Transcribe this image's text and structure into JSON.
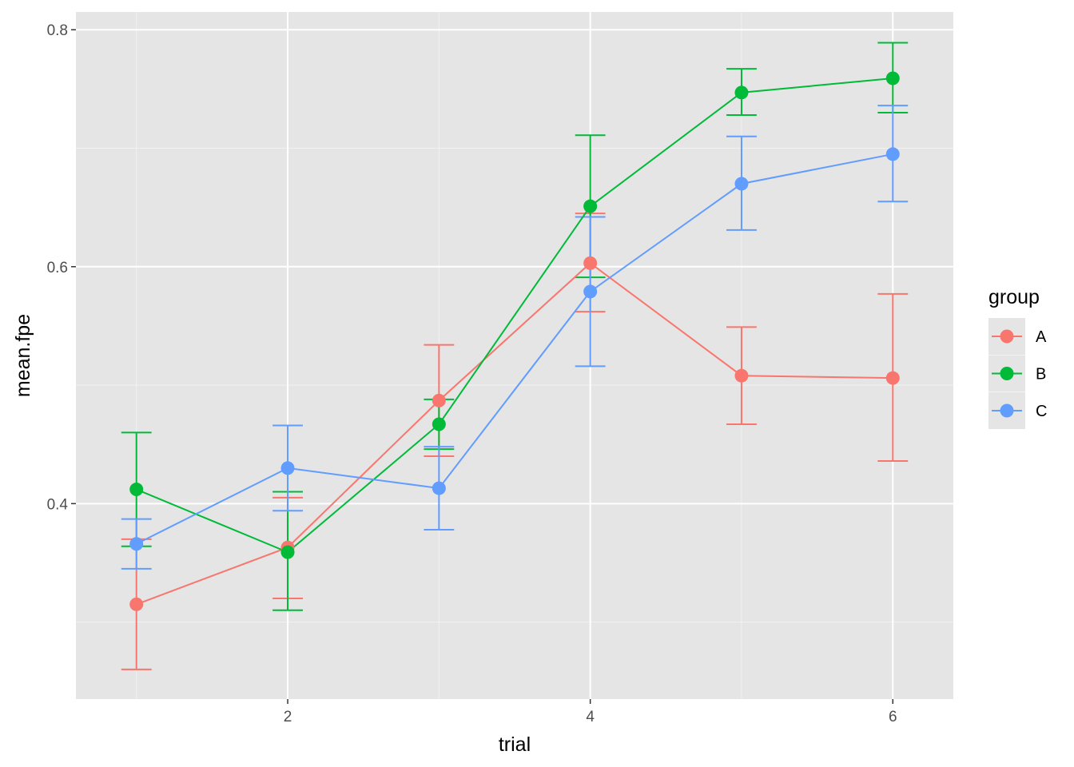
{
  "chart_data": {
    "type": "line",
    "xlabel": "trial",
    "ylabel": "mean.fpe",
    "xlim": [
      0.6,
      6.4
    ],
    "ylim": [
      0.235,
      0.815
    ],
    "x_ticks": [
      2,
      4,
      6
    ],
    "x_tick_labels": [
      "2",
      "4",
      "6"
    ],
    "x_minor": [
      1,
      3,
      5
    ],
    "y_ticks": [
      0.4,
      0.6,
      0.8
    ],
    "y_tick_labels": [
      "0.4",
      "0.6",
      "0.8"
    ],
    "y_minor": [
      0.3,
      0.5,
      0.7
    ],
    "grid": true,
    "panel_background": "#e5e5e5",
    "legend": {
      "title": "group",
      "position": "right"
    },
    "x": [
      1,
      2,
      3,
      4,
      5,
      6
    ],
    "series": [
      {
        "name": "A",
        "color": "#f8766d",
        "y": [
          0.315,
          0.363,
          0.487,
          0.603,
          0.508,
          0.506
        ],
        "lower": [
          0.26,
          0.32,
          0.44,
          0.562,
          0.467,
          0.436
        ],
        "upper": [
          0.37,
          0.405,
          0.534,
          0.645,
          0.549,
          0.577
        ]
      },
      {
        "name": "B",
        "color": "#00ba38",
        "y": [
          0.412,
          0.359,
          0.467,
          0.651,
          0.747,
          0.759
        ],
        "lower": [
          0.364,
          0.31,
          0.446,
          0.591,
          0.728,
          0.73
        ],
        "upper": [
          0.46,
          0.41,
          0.488,
          0.711,
          0.767,
          0.789
        ]
      },
      {
        "name": "C",
        "color": "#619cff",
        "y": [
          0.366,
          0.43,
          0.413,
          0.579,
          0.67,
          0.695
        ],
        "lower": [
          0.345,
          0.394,
          0.378,
          0.516,
          0.631,
          0.655
        ],
        "upper": [
          0.387,
          0.466,
          0.448,
          0.642,
          0.71,
          0.736
        ]
      }
    ]
  }
}
